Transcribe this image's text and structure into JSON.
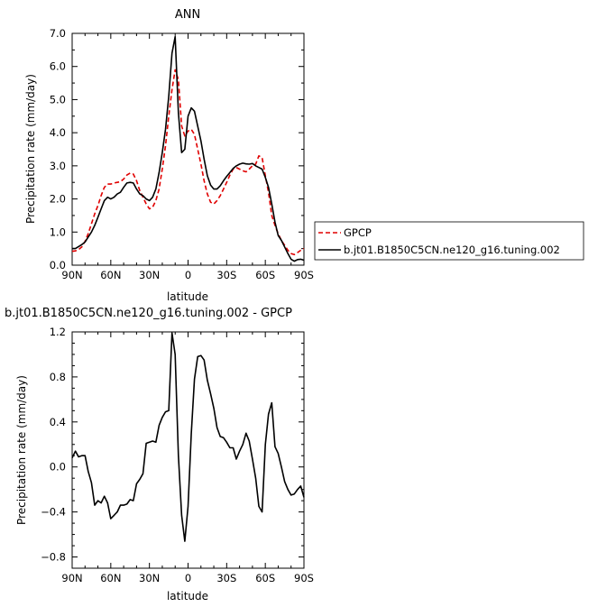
{
  "chart_data": [
    {
      "type": "line",
      "title": "ANN",
      "xlabel": "latitude",
      "ylabel": "Precipitation rate (mm/day)",
      "xlim": [
        90,
        -90
      ],
      "ylim": [
        0,
        7
      ],
      "xticks": [
        {
          "value": 90,
          "label": "90N"
        },
        {
          "value": 60,
          "label": "60N"
        },
        {
          "value": 30,
          "label": "30N"
        },
        {
          "value": 0,
          "label": "0"
        },
        {
          "value": -30,
          "label": "30S"
        },
        {
          "value": -60,
          "label": "60S"
        },
        {
          "value": -90,
          "label": "90S"
        }
      ],
      "yticks": [
        {
          "value": 0,
          "label": "0.0"
        },
        {
          "value": 1,
          "label": "1.0"
        },
        {
          "value": 2,
          "label": "2.0"
        },
        {
          "value": 3,
          "label": "3.0"
        },
        {
          "value": 4,
          "label": "4.0"
        },
        {
          "value": 5,
          "label": "5.0"
        },
        {
          "value": 6,
          "label": "6.0"
        },
        {
          "value": 7,
          "label": "7.0"
        }
      ],
      "grid": false,
      "legend": "right",
      "series": [
        {
          "name": "GPCP",
          "color": "#e00000",
          "style": "dashed",
          "x": [
            90,
            87.5,
            85,
            82.5,
            80,
            77.5,
            75,
            72.5,
            70,
            67.5,
            65,
            62.5,
            60,
            57.5,
            55,
            52.5,
            50,
            47.5,
            45,
            42.5,
            40,
            37.5,
            35,
            32.5,
            30,
            27.5,
            25,
            22.5,
            20,
            17.5,
            15,
            12.5,
            10,
            7.5,
            5,
            2.5,
            0,
            -2.5,
            -5,
            -7.5,
            -10,
            -12.5,
            -15,
            -17.5,
            -20,
            -22.5,
            -25,
            -27.5,
            -30,
            -32.5,
            -35,
            -37.5,
            -40,
            -42.5,
            -45,
            -47.5,
            -50,
            -52.5,
            -55,
            -57.5,
            -60,
            -62.5,
            -65,
            -67.5,
            -70,
            -72.5,
            -75,
            -77.5,
            -80,
            -82.5,
            -85,
            -87.5,
            -90
          ],
          "y": [
            0.42,
            0.43,
            0.47,
            0.55,
            0.72,
            0.95,
            1.25,
            1.55,
            1.8,
            2.1,
            2.35,
            2.45,
            2.45,
            2.48,
            2.5,
            2.52,
            2.6,
            2.72,
            2.78,
            2.75,
            2.55,
            2.25,
            2.05,
            1.85,
            1.7,
            1.75,
            1.95,
            2.3,
            2.9,
            3.6,
            4.5,
            5.3,
            5.9,
            5.6,
            4.2,
            3.9,
            4.05,
            4.1,
            3.95,
            3.5,
            3.05,
            2.55,
            2.15,
            1.9,
            1.85,
            1.95,
            2.1,
            2.3,
            2.5,
            2.72,
            2.9,
            2.95,
            2.9,
            2.85,
            2.82,
            2.9,
            3.0,
            3.05,
            3.3,
            3.25,
            2.7,
            2.2,
            1.5,
            1.2,
            0.95,
            0.75,
            0.6,
            0.45,
            0.35,
            0.32,
            0.38,
            0.45,
            0.5
          ]
        },
        {
          "name": "b.jt01.B1850C5CN.ne120_g16.tuning.002",
          "color": "#000000",
          "style": "solid",
          "x": [
            90,
            87.5,
            85,
            82.5,
            80,
            77.5,
            75,
            72.5,
            70,
            67.5,
            65,
            62.5,
            60,
            57.5,
            55,
            52.5,
            50,
            47.5,
            45,
            42.5,
            40,
            37.5,
            35,
            32.5,
            30,
            27.5,
            25,
            22.5,
            20,
            17.5,
            15,
            12.5,
            10,
            7.5,
            5,
            2.5,
            0,
            -2.5,
            -5,
            -7.5,
            -10,
            -12.5,
            -15,
            -17.5,
            -20,
            -22.5,
            -25,
            -27.5,
            -30,
            -32.5,
            -35,
            -37.5,
            -40,
            -42.5,
            -45,
            -47.5,
            -50,
            -52.5,
            -55,
            -57.5,
            -60,
            -62.5,
            -65,
            -67.5,
            -70,
            -72.5,
            -75,
            -77.5,
            -80,
            -82.5,
            -85,
            -87.5,
            -90
          ],
          "y": [
            0.5,
            0.5,
            0.56,
            0.62,
            0.7,
            0.85,
            1.0,
            1.2,
            1.45,
            1.7,
            1.95,
            2.05,
            2.0,
            2.05,
            2.15,
            2.2,
            2.35,
            2.48,
            2.5,
            2.48,
            2.3,
            2.15,
            2.1,
            2.0,
            1.95,
            2.05,
            2.3,
            2.8,
            3.4,
            4.1,
            5.1,
            6.4,
            6.9,
            4.6,
            3.4,
            3.5,
            4.5,
            4.75,
            4.65,
            4.2,
            3.75,
            3.2,
            2.7,
            2.42,
            2.3,
            2.3,
            2.4,
            2.55,
            2.68,
            2.8,
            2.92,
            3.0,
            3.05,
            3.08,
            3.06,
            3.05,
            3.07,
            3.0,
            2.95,
            2.9,
            2.65,
            2.35,
            1.85,
            1.3,
            0.9,
            0.75,
            0.55,
            0.35,
            0.18,
            0.12,
            0.17,
            0.18,
            0.15
          ]
        }
      ]
    },
    {
      "type": "line",
      "title": "b.jt01.B1850C5CN.ne120_g16.tuning.002 - GPCP",
      "xlabel": "latitude",
      "ylabel": "Precipitation rate (mm/day)",
      "xlim": [
        90,
        -90
      ],
      "ylim": [
        -0.9,
        1.2
      ],
      "xticks": [
        {
          "value": 90,
          "label": "90N"
        },
        {
          "value": 60,
          "label": "60N"
        },
        {
          "value": 30,
          "label": "30N"
        },
        {
          "value": 0,
          "label": "0"
        },
        {
          "value": -30,
          "label": "30S"
        },
        {
          "value": -60,
          "label": "60S"
        },
        {
          "value": -90,
          "label": "90S"
        }
      ],
      "yticks": [
        {
          "value": -0.8,
          "label": "−0.8"
        },
        {
          "value": -0.4,
          "label": "−0.4"
        },
        {
          "value": 0.0,
          "label": "0.0"
        },
        {
          "value": 0.4,
          "label": "0.4"
        },
        {
          "value": 0.8,
          "label": "0.8"
        },
        {
          "value": 1.2,
          "label": "1.2"
        }
      ],
      "grid": false,
      "series": [
        {
          "color": "#000000",
          "style": "solid",
          "x": [
            90,
            87.5,
            85,
            82.5,
            80,
            77.5,
            75,
            72.5,
            70,
            67.5,
            65,
            62.5,
            60,
            57.5,
            55,
            52.5,
            50,
            47.5,
            45,
            42.5,
            40,
            37.5,
            35,
            32.5,
            30,
            27.5,
            25,
            22.5,
            20,
            17.5,
            15,
            12.5,
            10,
            7.5,
            5,
            2.5,
            0,
            -2.5,
            -5,
            -7.5,
            -10,
            -12.5,
            -15,
            -17.5,
            -20,
            -22.5,
            -25,
            -27.5,
            -30,
            -32.5,
            -35,
            -37.5,
            -40,
            -42.5,
            -45,
            -47.5,
            -50,
            -52.5,
            -55,
            -57.5,
            -60,
            -62.5,
            -65,
            -67.5,
            -70,
            -72.5,
            -75,
            -77.5,
            -80,
            -82.5,
            -85,
            -87.5,
            -90
          ],
          "y": [
            0.08,
            0.14,
            0.09,
            0.1,
            0.1,
            -0.04,
            -0.14,
            -0.34,
            -0.3,
            -0.32,
            -0.26,
            -0.32,
            -0.46,
            -0.43,
            -0.4,
            -0.34,
            -0.34,
            -0.33,
            -0.29,
            -0.3,
            -0.15,
            -0.11,
            -0.06,
            0.21,
            0.22,
            0.23,
            0.22,
            0.37,
            0.44,
            0.49,
            0.5,
            1.19,
            1.0,
            0.1,
            -0.43,
            -0.66,
            -0.35,
            0.3,
            0.78,
            0.98,
            0.99,
            0.95,
            0.77,
            0.65,
            0.52,
            0.35,
            0.27,
            0.26,
            0.22,
            0.17,
            0.17,
            0.07,
            0.14,
            0.2,
            0.3,
            0.23,
            0.07,
            -0.1,
            -0.35,
            -0.4,
            0.2,
            0.47,
            0.57,
            0.18,
            0.12,
            0.0,
            -0.13,
            -0.2,
            -0.25,
            -0.24,
            -0.2,
            -0.17,
            -0.27
          ]
        }
      ]
    }
  ]
}
